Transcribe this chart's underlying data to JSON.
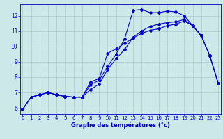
{
  "xlabel": "Graphe des températures (°c)",
  "bg_color": "#cce8e8",
  "line_color": "#0000cc",
  "grid_color": "#aacccc",
  "x_ticks": [
    0,
    1,
    2,
    3,
    4,
    5,
    6,
    7,
    8,
    9,
    10,
    11,
    12,
    13,
    14,
    15,
    16,
    17,
    18,
    19,
    20,
    21,
    22,
    23
  ],
  "y_ticks": [
    6,
    7,
    8,
    9,
    10,
    11,
    12
  ],
  "xlim": [
    -0.3,
    23.3
  ],
  "ylim": [
    5.6,
    12.75
  ],
  "curve1_x": [
    0,
    1,
    2,
    3,
    4,
    5,
    6,
    7,
    8,
    9,
    10,
    11,
    12,
    13,
    14,
    15,
    16,
    17,
    18,
    19,
    20,
    21,
    22,
    23
  ],
  "curve1_y": [
    5.9,
    6.7,
    6.85,
    7.0,
    6.85,
    6.75,
    6.7,
    6.7,
    7.5,
    7.8,
    8.7,
    9.5,
    10.5,
    12.35,
    12.4,
    12.2,
    12.2,
    12.3,
    12.25,
    12.0,
    11.35,
    10.7,
    9.4,
    7.6
  ],
  "curve2_x": [
    0,
    1,
    2,
    3,
    4,
    5,
    6,
    7,
    8,
    9,
    10,
    11,
    12,
    13,
    14,
    15,
    16,
    17,
    18,
    19,
    20,
    21,
    22,
    23
  ],
  "curve2_y": [
    5.9,
    6.7,
    6.85,
    7.0,
    6.85,
    6.75,
    6.7,
    6.7,
    7.2,
    7.55,
    8.5,
    9.2,
    9.8,
    10.6,
    11.0,
    11.3,
    11.45,
    11.55,
    11.6,
    11.75,
    11.35,
    10.7,
    9.4,
    7.6
  ],
  "curve3_x": [
    0,
    1,
    2,
    3,
    4,
    5,
    6,
    7,
    8,
    9,
    10,
    11,
    12,
    13,
    14,
    15,
    16,
    17,
    18,
    19,
    20,
    21,
    22,
    23
  ],
  "curve3_y": [
    5.9,
    6.7,
    6.85,
    7.0,
    6.85,
    6.75,
    6.7,
    6.7,
    7.7,
    7.9,
    9.55,
    9.85,
    10.2,
    10.55,
    10.85,
    11.05,
    11.15,
    11.35,
    11.45,
    11.65,
    11.35,
    10.7,
    9.4,
    7.6
  ],
  "xlabel_fontsize": 6.0,
  "tick_fontsize_x": 5.0,
  "tick_fontsize_y": 5.5
}
